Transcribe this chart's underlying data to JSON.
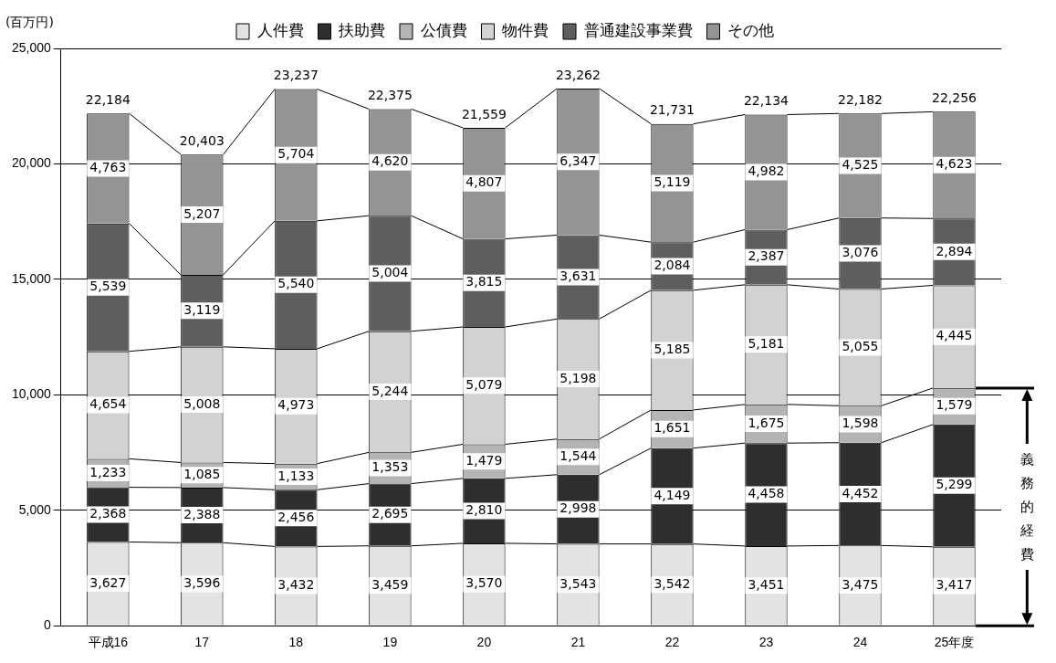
{
  "chart_data": {
    "type": "bar",
    "stacked": true,
    "ylabel": "(百万円)",
    "categories": [
      "平成16",
      "17",
      "18",
      "19",
      "20",
      "21",
      "22",
      "23",
      "24",
      "25年度"
    ],
    "series": [
      {
        "name": "人件費",
        "color": "#e3e3e3",
        "values": [
          3627,
          3596,
          3432,
          3459,
          3570,
          3543,
          3542,
          3451,
          3475,
          3417
        ],
        "value_labels": [
          "3,627",
          "3,596",
          "3,432",
          "3,459",
          "3,570",
          "3,543",
          "3,542",
          "3,451",
          "3,475",
          "3,417"
        ]
      },
      {
        "name": "扶助費",
        "color": "#2e2e2e",
        "values": [
          2368,
          2388,
          2456,
          2695,
          2810,
          2998,
          4149,
          4458,
          4452,
          5299
        ],
        "value_labels": [
          "2,368",
          "2,388",
          "2,456",
          "2,695",
          "2,810",
          "2,998",
          "4,149",
          "4,458",
          "4,452",
          "5,299"
        ]
      },
      {
        "name": "公債費",
        "color": "#b4b4b4",
        "values": [
          1233,
          1085,
          1133,
          1353,
          1479,
          1544,
          1651,
          1675,
          1598,
          1579
        ],
        "value_labels": [
          "1,233",
          "1,085",
          "1,133",
          "1,353",
          "1,479",
          "1,544",
          "1,651",
          "1,675",
          "1,598",
          "1,579"
        ]
      },
      {
        "name": "物件費",
        "color": "#d2d2d2",
        "values": [
          4654,
          5008,
          4973,
          5244,
          5079,
          5198,
          5185,
          5181,
          5055,
          4445
        ],
        "value_labels": [
          "4,654",
          "5,008",
          "4,973",
          "5,244",
          "5,079",
          "5,198",
          "5,185",
          "5,181",
          "5,055",
          "4,445"
        ]
      },
      {
        "name": "普通建設事業費",
        "color": "#5e5e5e",
        "values": [
          5539,
          3119,
          5540,
          5004,
          3815,
          3631,
          2084,
          2387,
          3076,
          2894
        ],
        "value_labels": [
          "5,539",
          "3,119",
          "5,540",
          "5,004",
          "3,815",
          "3,631",
          "2,084",
          "2,387",
          "3,076",
          "2,894"
        ]
      },
      {
        "name": "その他",
        "color": "#949494",
        "values": [
          4763,
          5207,
          5704,
          4620,
          4807,
          6347,
          5119,
          4982,
          4525,
          4623
        ],
        "value_labels": [
          "4,763",
          "5,207",
          "5,704",
          "4,620",
          "4,807",
          "6,347",
          "5,119",
          "4,982",
          "4,525",
          "4,623"
        ]
      }
    ],
    "totals": [
      "22,184",
      "20,403",
      "23,237",
      "22,375",
      "21,559",
      "23,262",
      "21,731",
      "22,134",
      "22,182",
      "22,256"
    ],
    "ylim": [
      0,
      25000
    ],
    "yticks": [
      {
        "value": 0,
        "label": "0"
      },
      {
        "value": 5000,
        "label": "5,000"
      },
      {
        "value": 10000,
        "label": "10,000"
      },
      {
        "value": 15000,
        "label": "15,000"
      },
      {
        "value": 20000,
        "label": "20,000"
      },
      {
        "value": 25000,
        "label": "25,000"
      }
    ],
    "grid": "y",
    "legend": "top",
    "annotations": [
      "義務的経費"
    ]
  }
}
